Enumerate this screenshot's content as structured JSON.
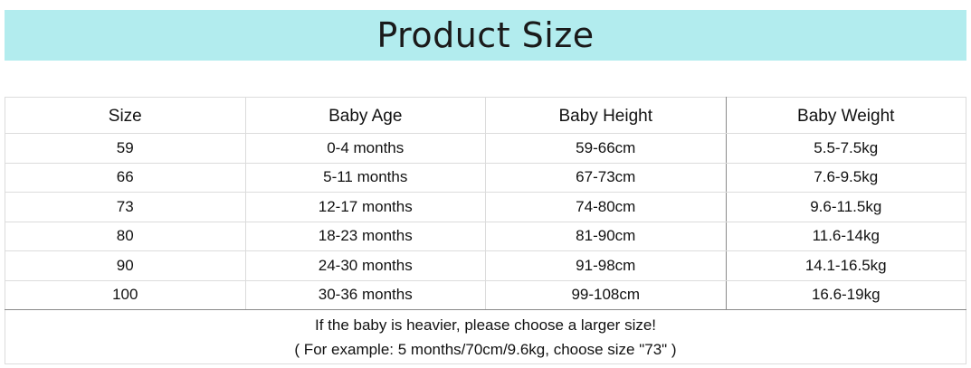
{
  "title": "Product Size",
  "colors": {
    "banner": "#b2ecee"
  },
  "table": {
    "headers": [
      "Size",
      "Baby Age",
      "Baby Height",
      "Baby Weight"
    ],
    "rows": [
      [
        "59",
        "0-4 months",
        "59-66cm",
        "5.5-7.5kg"
      ],
      [
        "66",
        "5-11 months",
        "67-73cm",
        "7.6-9.5kg"
      ],
      [
        "73",
        "12-17 months",
        "74-80cm",
        "9.6-11.5kg"
      ],
      [
        "80",
        "18-23 months",
        "81-90cm",
        "11.6-14kg"
      ],
      [
        "90",
        "24-30 months",
        "91-98cm",
        "14.1-16.5kg"
      ],
      [
        "100",
        "30-36 months",
        "99-108cm",
        "16.6-19kg"
      ]
    ],
    "note_line1": "If the baby is heavier, please choose a larger size!",
    "note_line2": "( For example: 5 months/70cm/9.6kg, choose size \"73\" )"
  }
}
